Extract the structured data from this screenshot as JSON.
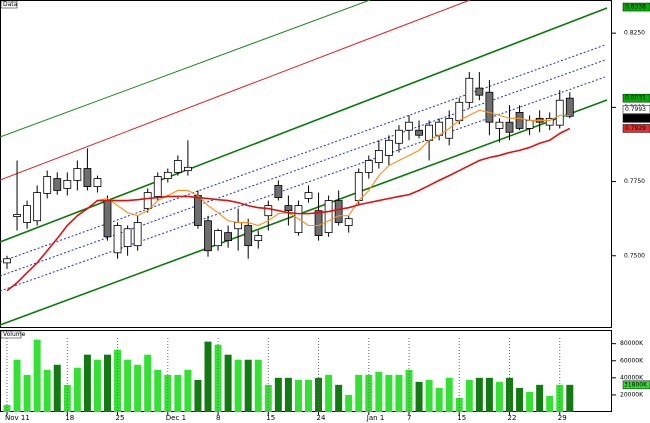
{
  "chart_data": {
    "type": "candlestick",
    "panel_label": "Data",
    "categories": [
      "Nov 11",
      null,
      null,
      null,
      null,
      null,
      "18",
      null,
      null,
      null,
      null,
      "25",
      null,
      null,
      null,
      null,
      "Dec 1",
      null,
      null,
      null,
      null,
      "8",
      null,
      null,
      null,
      null,
      "15",
      null,
      null,
      null,
      null,
      "24",
      null,
      null,
      null,
      null,
      "Jan 1",
      null,
      null,
      null,
      "7",
      null,
      null,
      null,
      null,
      "15",
      null,
      null,
      null,
      null,
      "22",
      null,
      null,
      null,
      null,
      "29",
      null
    ],
    "open": [
      0.7476,
      0.7632,
      0.7612,
      0.7618,
      0.771,
      0.776,
      0.7727,
      0.7754,
      0.7794,
      0.7733,
      0.7686,
      0.751,
      0.7531,
      0.7534,
      0.7659,
      0.77,
      0.776,
      0.7781,
      0.7787,
      0.7703,
      0.7618,
      0.7534,
      0.7578,
      0.7591,
      0.7602,
      0.7551,
      0.7635,
      0.7737,
      0.7669,
      0.7578,
      0.7693,
      0.7652,
      0.7578,
      0.7686,
      0.7602,
      0.7686,
      0.7781,
      0.7814,
      0.7838,
      0.7879,
      0.7923,
      0.7923,
      0.7889,
      0.7906,
      0.7896,
      0.7956,
      0.8017,
      0.8065,
      0.8051,
      0.7929,
      0.795,
      0.7983,
      0.7929,
      0.7963,
      0.794,
      0.794,
      0.8031
    ],
    "high": [
      0.75,
      0.7821,
      0.7686,
      0.7737,
      0.7787,
      0.7781,
      0.7781,
      0.7821,
      0.7862,
      0.777,
      0.7703,
      0.7612,
      0.7602,
      0.7635,
      0.7727,
      0.7781,
      0.7794,
      0.7838,
      0.7889,
      0.772,
      0.7635,
      0.7591,
      0.7602,
      0.7659,
      0.7625,
      0.7585,
      0.7686,
      0.7754,
      0.7703,
      0.7686,
      0.7737,
      0.7713,
      0.7703,
      0.772,
      0.7635,
      0.7794,
      0.7838,
      0.7889,
      0.7906,
      0.794,
      0.7973,
      0.7956,
      0.7956,
      0.7963,
      0.799,
      0.8031,
      0.8119,
      0.8119,
      0.8092,
      0.7963,
      0.8007,
      0.8007,
      0.7973,
      0.799,
      0.7983,
      0.8058,
      0.8051
    ],
    "low": [
      0.7456,
      0.7585,
      0.7591,
      0.7602,
      0.7693,
      0.7706,
      0.7703,
      0.772,
      0.772,
      0.7713,
      0.7551,
      0.749,
      0.75,
      0.7517,
      0.7645,
      0.7686,
      0.7747,
      0.777,
      0.777,
      0.7591,
      0.7497,
      0.7517,
      0.7527,
      0.7517,
      0.749,
      0.7524,
      0.7585,
      0.7686,
      0.7602,
      0.7568,
      0.7679,
      0.7551,
      0.7564,
      0.7602,
      0.7578,
      0.7669,
      0.776,
      0.7794,
      0.7804,
      0.7848,
      0.7889,
      0.7896,
      0.7821,
      0.7889,
      0.7872,
      0.7943,
      0.7997,
      0.8024,
      0.7906,
      0.7882,
      0.7889,
      0.7923,
      0.7906,
      0.7916,
      0.7923,
      0.7929,
      0.7963
    ],
    "close": [
      0.749,
      0.7639,
      0.7669,
      0.7713,
      0.7767,
      0.772,
      0.7754,
      0.7794,
      0.7733,
      0.776,
      0.7564,
      0.7602,
      0.7591,
      0.7612,
      0.7713,
      0.7767,
      0.7781,
      0.7821,
      0.7798,
      0.7602,
      0.7517,
      0.7585,
      0.7551,
      0.7612,
      0.7534,
      0.7568,
      0.7669,
      0.7696,
      0.7652,
      0.7669,
      0.7713,
      0.7568,
      0.7686,
      0.7612,
      0.7625,
      0.7781,
      0.7821,
      0.7855,
      0.7889,
      0.7923,
      0.795,
      0.7906,
      0.794,
      0.795,
      0.7963,
      0.8017,
      0.8098,
      0.8041,
      0.795,
      0.795,
      0.7916,
      0.7929,
      0.7956,
      0.795,
      0.7963,
      0.8024,
      0.797
    ],
    "up_color": "#ffffff",
    "down_color": "#6e6e6e",
    "moving_averages": [
      {
        "color": "#ff8c1a",
        "values": [
          null,
          null,
          null,
          null,
          null,
          null,
          null,
          null,
          null,
          0.7686,
          0.7693,
          0.7669,
          0.7645,
          0.7635,
          0.7652,
          0.7686,
          0.7703,
          0.772,
          0.772,
          0.7703,
          0.7669,
          0.7645,
          0.7618,
          0.7612,
          0.7612,
          0.7602,
          0.7618,
          0.7642,
          0.7645,
          0.7625,
          0.7602,
          0.7602,
          0.7618,
          0.7635,
          0.7635,
          0.7686,
          0.772,
          0.777,
          0.7804,
          0.7821,
          0.7838,
          0.7855,
          0.7889,
          0.7906,
          0.7929,
          0.7956,
          0.7973,
          0.799,
          0.7983,
          0.7973,
          0.7963,
          0.7963,
          0.7956,
          0.7956,
          0.7956,
          0.7973,
          0.7973
        ]
      },
      {
        "color": "#e01010",
        "values": [
          0.7382,
          0.7409,
          0.7443,
          0.7476,
          0.7517,
          0.7558,
          0.7602,
          0.7635,
          0.7659,
          0.7686,
          0.7686,
          0.7686,
          0.7686,
          0.7689,
          0.7693,
          0.7696,
          0.77,
          0.77,
          0.77,
          0.7696,
          0.7693,
          0.7689,
          0.7686,
          0.7679,
          0.7669,
          0.7662,
          0.7659,
          0.7652,
          0.7645,
          0.7642,
          0.7642,
          0.7645,
          0.7649,
          0.7656,
          0.7662,
          0.7672,
          0.7679,
          0.7686,
          0.7693,
          0.77,
          0.7706,
          0.772,
          0.7737,
          0.7754,
          0.777,
          0.7787,
          0.7804,
          0.7821,
          0.7831,
          0.7838,
          0.7848,
          0.7855,
          0.7865,
          0.7879,
          0.7889,
          0.7912,
          0.7929
        ]
      }
    ],
    "ylim": [
      0.726,
      0.8355
    ],
    "yticks": [
      {
        "value": 0.825,
        "label": "0.8250"
      },
      {
        "value": 0.8,
        "label": "0.8000"
      },
      {
        "value": 0.775,
        "label": "0.7750"
      },
      {
        "value": 0.75,
        "label": "0.7500"
      }
    ],
    "price_tags": [
      {
        "value": 0.8338,
        "color": "#00b000"
      },
      {
        "value": 0.8031,
        "color": "#00b000"
      },
      {
        "value": 0.7993,
        "color": "#ffffff"
      },
      {
        "value": 0.7963,
        "color": "#000000"
      },
      {
        "value": 0.7929,
        "color": "#e03030"
      }
    ],
    "volume": {
      "title": "Volume",
      "values": [
        8200,
        61200,
        43500,
        84700,
        49400,
        55300,
        31800,
        51800,
        67100,
        61200,
        67100,
        72900,
        61200,
        55300,
        67100,
        49400,
        43500,
        43500,
        49400,
        37600,
        82400,
        78800,
        67100,
        61200,
        61200,
        61200,
        31800,
        40000,
        40000,
        37600,
        37600,
        40000,
        43500,
        31800,
        20000,
        43500,
        43500,
        47100,
        43500,
        43500,
        49400,
        35300,
        37600,
        28200,
        40000,
        16500,
        37600,
        40000,
        40000,
        35300,
        40000,
        28200,
        23500,
        31800,
        18800,
        31800,
        31800
      ],
      "up_color": "#33e033",
      "down_color": "#137a13",
      "ylim": [
        0,
        96000
      ],
      "yticks": [
        {
          "value": 80000,
          "label": "80000K"
        },
        {
          "value": 60000,
          "label": "60000K"
        },
        {
          "value": 40000,
          "label": "40000K"
        },
        {
          "value": 20000,
          "label": "20000K"
        }
      ],
      "tag": {
        "value": 31800,
        "label": "31800K",
        "color": "#33e033"
      }
    }
  }
}
